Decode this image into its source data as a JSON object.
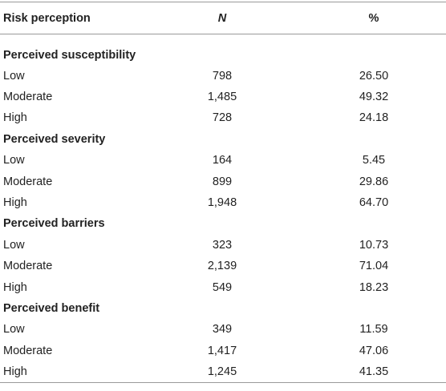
{
  "table": {
    "header": [
      "Risk perception",
      "N",
      "%"
    ],
    "sections": [
      {
        "title": "Perceived susceptibility",
        "rows": [
          [
            "Low",
            "798",
            "26.50"
          ],
          [
            "Moderate",
            "1,485",
            "49.32"
          ],
          [
            "High",
            "728",
            "24.18"
          ]
        ]
      },
      {
        "title": "Perceived severity",
        "rows": [
          [
            "Low",
            "164",
            "5.45"
          ],
          [
            "Moderate",
            "899",
            "29.86"
          ],
          [
            "High",
            "1,948",
            "64.70"
          ]
        ]
      },
      {
        "title": "Perceived barriers",
        "rows": [
          [
            "Low",
            "323",
            "10.73"
          ],
          [
            "Moderate",
            "2,139",
            "71.04"
          ],
          [
            "High",
            "549",
            "18.23"
          ]
        ]
      },
      {
        "title": "Perceived benefit",
        "rows": [
          [
            "Low",
            "349",
            "11.59"
          ],
          [
            "Moderate",
            "1,417",
            "47.06"
          ],
          [
            "High",
            "1,245",
            "41.35"
          ]
        ]
      }
    ]
  }
}
